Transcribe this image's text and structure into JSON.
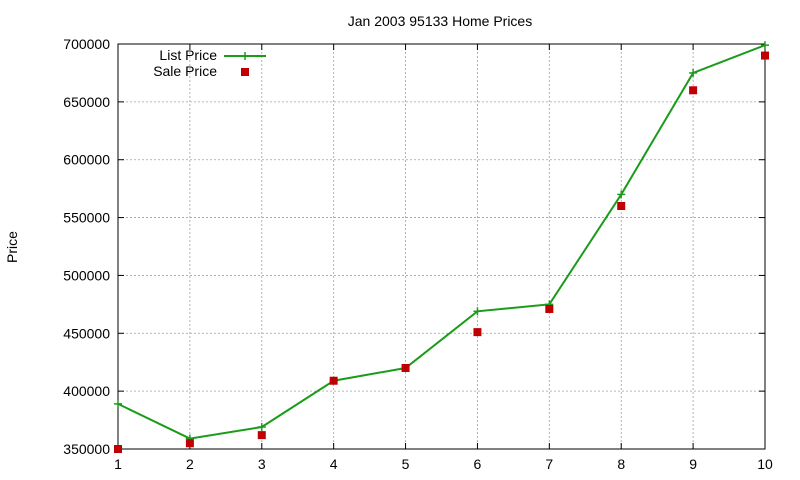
{
  "chart_data": {
    "type": "line",
    "title": "Jan 2003 95133 Home Prices",
    "xlabel": "",
    "ylabel": "Price",
    "x": [
      1,
      2,
      3,
      4,
      5,
      6,
      7,
      8,
      9,
      10
    ],
    "xlim": [
      1,
      10
    ],
    "ylim": [
      350000,
      700000
    ],
    "xticks": [
      1,
      2,
      3,
      4,
      5,
      6,
      7,
      8,
      9,
      10
    ],
    "yticks": [
      350000,
      400000,
      450000,
      500000,
      550000,
      600000,
      650000,
      700000
    ],
    "grid": true,
    "legend_position": "top-left",
    "series": [
      {
        "name": "List Price",
        "style": "line-plus",
        "color": "#1a9c1a",
        "values": [
          389000,
          359000,
          369000,
          409000,
          420000,
          469000,
          475000,
          570000,
          675000,
          699000
        ]
      },
      {
        "name": "Sale Price",
        "style": "square-points",
        "color": "#c00000",
        "values": [
          350000,
          355000,
          362000,
          409000,
          420000,
          451000,
          471000,
          560000,
          660000,
          690000
        ]
      }
    ]
  }
}
